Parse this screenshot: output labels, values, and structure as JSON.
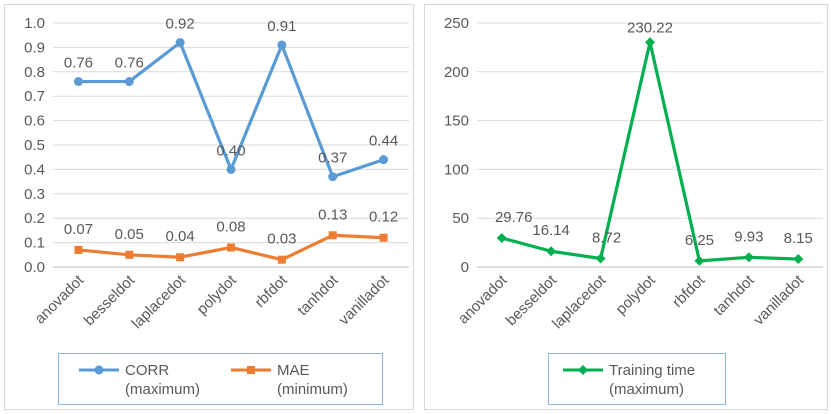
{
  "chart_data": [
    {
      "type": "line",
      "categories": [
        "anovadot",
        "besseldot",
        "laplacedot",
        "polydot",
        "rbfdot",
        "tanhdot",
        "vanilladot"
      ],
      "ylim": [
        0,
        1.0
      ],
      "yticks": [
        "0.0",
        "0.1",
        "0.2",
        "0.3",
        "0.4",
        "0.5",
        "0.6",
        "0.7",
        "0.8",
        "0.9",
        "1.0"
      ],
      "grid": true,
      "legend_position": "bottom",
      "series": [
        {
          "name": "CORR (maximum)",
          "legend_line1": "CORR",
          "legend_line2": "(maximum)",
          "color": "#5b9bd5",
          "marker": "circle",
          "values": [
            0.76,
            0.76,
            0.92,
            0.4,
            0.91,
            0.37,
            0.44
          ],
          "labels": [
            "0.76",
            "0.76",
            "0.92",
            "0.40",
            "0.91",
            "0.37",
            "0.44"
          ]
        },
        {
          "name": "MAE (minimum)",
          "legend_line1": "MAE",
          "legend_line2": "(minimum)",
          "color": "#ed7d31",
          "marker": "square",
          "values": [
            0.07,
            0.05,
            0.04,
            0.08,
            0.03,
            0.13,
            0.12
          ],
          "labels": [
            "0.07",
            "0.05",
            "0.04",
            "0.08",
            "0.03",
            "0.13",
            "0.12"
          ]
        }
      ]
    },
    {
      "type": "line",
      "categories": [
        "anovadot",
        "besseldot",
        "laplacedot",
        "polydot",
        "rbfdot",
        "tanhdot",
        "vanilladot"
      ],
      "ylim": [
        0,
        250
      ],
      "yticks": [
        "0",
        "50",
        "100",
        "150",
        "200",
        "250"
      ],
      "grid": true,
      "legend_position": "bottom",
      "series": [
        {
          "name": "Training time (maximum)",
          "legend_line1": "Training time",
          "legend_line2": "(maximum)",
          "color": "#00b050",
          "marker": "diamond",
          "values": [
            29.76,
            16.14,
            8.72,
            230.22,
            6.25,
            9.93,
            8.15
          ],
          "labels": [
            "29.76",
            "16.14",
            "8.72",
            "230.22",
            "6.25",
            "9.93",
            "8.15"
          ]
        }
      ]
    }
  ]
}
